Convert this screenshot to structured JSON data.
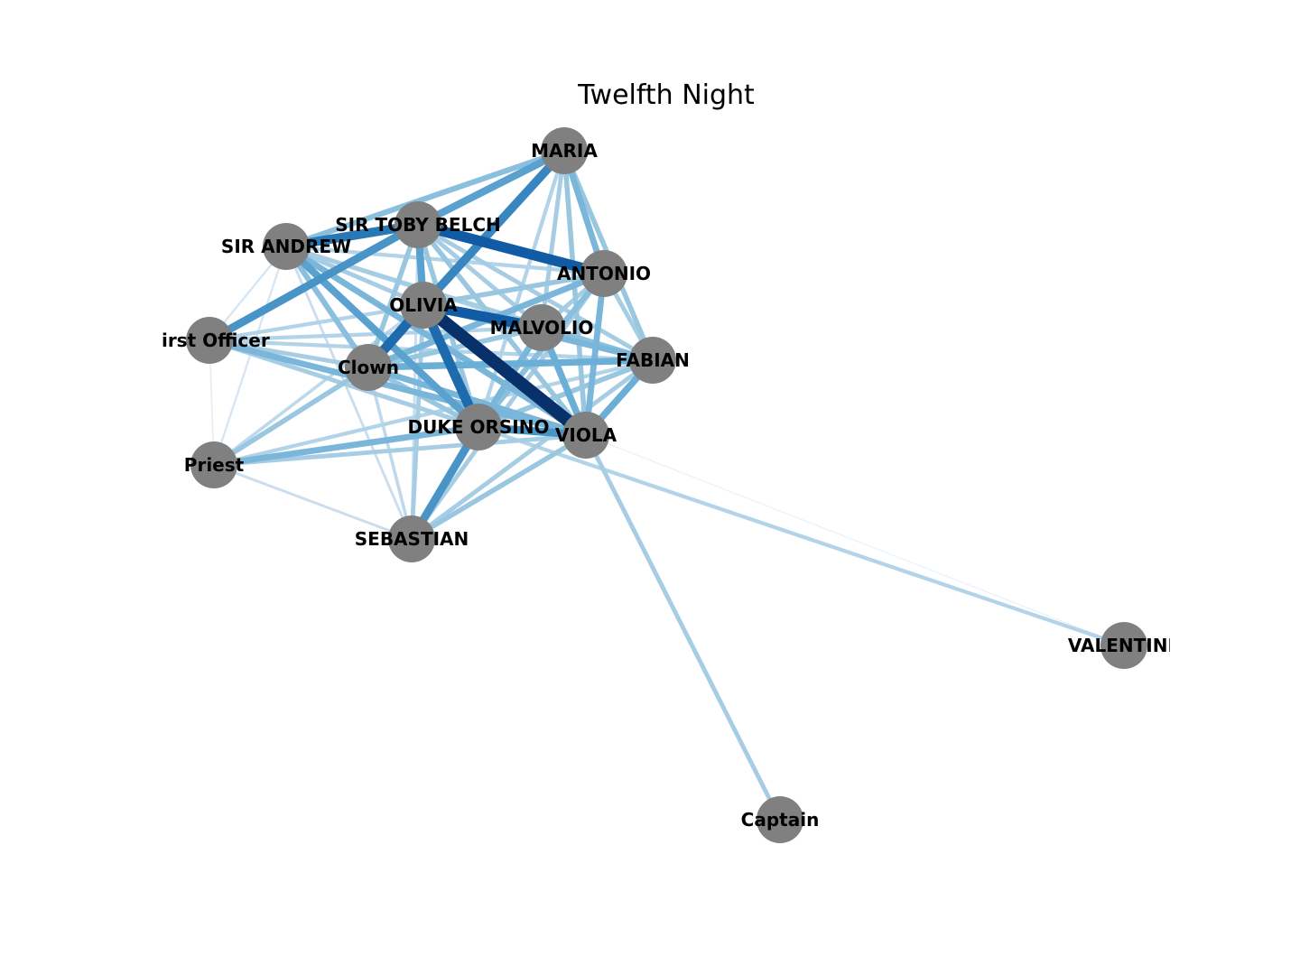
{
  "title": "Twelfth Night",
  "node_color": "#808080",
  "edge_colormap": [
    "#eef4fb",
    "#c6dbef",
    "#9ecae1",
    "#6baed6",
    "#3182bd",
    "#08519c",
    "#08306b"
  ],
  "nodes": [
    {
      "id": "MARIA",
      "label": "MARIA"
    },
    {
      "id": "SIR TOBY BELCH",
      "label": "SIR TOBY BELCH"
    },
    {
      "id": "SIR ANDREW",
      "label": "SIR ANDREW"
    },
    {
      "id": "ANTONIO",
      "label": "ANTONIO"
    },
    {
      "id": "OLIVIA",
      "label": "OLIVIA"
    },
    {
      "id": "MALVOLIO",
      "label": "MALVOLIO"
    },
    {
      "id": "First Officer",
      "label": "First Officer"
    },
    {
      "id": "Clown",
      "label": "Clown"
    },
    {
      "id": "FABIAN",
      "label": "FABIAN"
    },
    {
      "id": "DUKE ORSINO",
      "label": "DUKE ORSINO"
    },
    {
      "id": "VIOLA",
      "label": "VIOLA"
    },
    {
      "id": "Priest",
      "label": "Priest"
    },
    {
      "id": "SEBASTIAN",
      "label": "SEBASTIAN"
    },
    {
      "id": "VALENTINE",
      "label": "VALENTINE"
    },
    {
      "id": "Captain",
      "label": "Captain"
    }
  ],
  "edges": [
    {
      "source": "OLIVIA",
      "target": "VIOLA",
      "weight": 1.0
    },
    {
      "source": "SIR TOBY BELCH",
      "target": "ANTONIO",
      "weight": 0.8
    },
    {
      "source": "SIR TOBY BELCH",
      "target": "SIR ANDREW",
      "weight": 0.7
    },
    {
      "source": "OLIVIA",
      "target": "MALVOLIO",
      "weight": 0.8
    },
    {
      "source": "OLIVIA",
      "target": "DUKE ORSINO",
      "weight": 0.75
    },
    {
      "source": "OLIVIA",
      "target": "Clown",
      "weight": 0.75
    },
    {
      "source": "MARIA",
      "target": "OLIVIA",
      "weight": 0.65
    },
    {
      "source": "SIR TOBY BELCH",
      "target": "First Officer",
      "weight": 0.6
    },
    {
      "source": "DUKE ORSINO",
      "target": "SEBASTIAN",
      "weight": 0.6
    },
    {
      "source": "DUKE ORSINO",
      "target": "VIOLA",
      "weight": 0.6
    },
    {
      "source": "SIR TOBY BELCH",
      "target": "OLIVIA",
      "weight": 0.55
    },
    {
      "source": "SIR TOBY BELCH",
      "target": "MARIA",
      "weight": 0.55
    },
    {
      "source": "SIR ANDREW",
      "target": "DUKE ORSINO",
      "weight": 0.55
    },
    {
      "source": "MALVOLIO",
      "target": "VIOLA",
      "weight": 0.5
    },
    {
      "source": "FABIAN",
      "target": "VIOLA",
      "weight": 0.5
    },
    {
      "source": "Clown",
      "target": "FABIAN",
      "weight": 0.5
    },
    {
      "source": "Priest",
      "target": "DUKE ORSINO",
      "weight": 0.45
    },
    {
      "source": "MARIA",
      "target": "ANTONIO",
      "weight": 0.45
    },
    {
      "source": "ANTONIO",
      "target": "VIOLA",
      "weight": 0.45
    },
    {
      "source": "SIR ANDREW",
      "target": "VIOLA",
      "weight": 0.45
    },
    {
      "source": "SIR ANDREW",
      "target": "Clown",
      "weight": 0.4
    },
    {
      "source": "First Officer",
      "target": "VIOLA",
      "weight": 0.45
    },
    {
      "source": "OLIVIA",
      "target": "FABIAN",
      "weight": 0.45
    },
    {
      "source": "ANTONIO",
      "target": "Clown",
      "weight": 0.45
    },
    {
      "source": "MALVOLIO",
      "target": "DUKE ORSINO",
      "weight": 0.45
    },
    {
      "source": "Clown",
      "target": "VIOLA",
      "weight": 0.45
    },
    {
      "source": "MARIA",
      "target": "SIR ANDREW",
      "weight": 0.4
    },
    {
      "source": "MARIA",
      "target": "FABIAN",
      "weight": 0.35
    },
    {
      "source": "MARIA",
      "target": "VIOLA",
      "weight": 0.35
    },
    {
      "source": "SIR TOBY BELCH",
      "target": "VIOLA",
      "weight": 0.35
    },
    {
      "source": "SIR TOBY BELCH",
      "target": "Clown",
      "weight": 0.35
    },
    {
      "source": "SIR TOBY BELCH",
      "target": "DUKE ORSINO",
      "weight": 0.35
    },
    {
      "source": "SIR TOBY BELCH",
      "target": "MALVOLIO",
      "weight": 0.3
    },
    {
      "source": "SIR TOBY BELCH",
      "target": "FABIAN",
      "weight": 0.3
    },
    {
      "source": "SIR ANDREW",
      "target": "OLIVIA",
      "weight": 0.3
    },
    {
      "source": "SIR ANDREW",
      "target": "FABIAN",
      "weight": 0.3
    },
    {
      "source": "SIR ANDREW",
      "target": "ANTONIO",
      "weight": 0.25
    },
    {
      "source": "SIR ANDREW",
      "target": "MALVOLIO",
      "weight": 0.25
    },
    {
      "source": "OLIVIA",
      "target": "ANTONIO",
      "weight": 0.35
    },
    {
      "source": "OLIVIA",
      "target": "SEBASTIAN",
      "weight": 0.3
    },
    {
      "source": "OLIVIA",
      "target": "First Officer",
      "weight": 0.25
    },
    {
      "source": "OLIVIA",
      "target": "Priest",
      "weight": 0.2
    },
    {
      "source": "ANTONIO",
      "target": "MALVOLIO",
      "weight": 0.3
    },
    {
      "source": "ANTONIO",
      "target": "FABIAN",
      "weight": 0.3
    },
    {
      "source": "ANTONIO",
      "target": "DUKE ORSINO",
      "weight": 0.4
    },
    {
      "source": "ANTONIO",
      "target": "SEBASTIAN",
      "weight": 0.3
    },
    {
      "source": "MALVOLIO",
      "target": "FABIAN",
      "weight": 0.4
    },
    {
      "source": "MALVOLIO",
      "target": "Clown",
      "weight": 0.35
    },
    {
      "source": "MALVOLIO",
      "target": "First Officer",
      "weight": 0.25
    },
    {
      "source": "MALVOLIO",
      "target": "SEBASTIAN",
      "weight": 0.3
    },
    {
      "source": "MARIA",
      "target": "MALVOLIO",
      "weight": 0.3
    },
    {
      "source": "MARIA",
      "target": "DUKE ORSINO",
      "weight": 0.25
    },
    {
      "source": "First Officer",
      "target": "Clown",
      "weight": 0.3
    },
    {
      "source": "First Officer",
      "target": "DUKE ORSINO",
      "weight": 0.3
    },
    {
      "source": "First Officer",
      "target": "FABIAN",
      "weight": 0.25
    },
    {
      "source": "Clown",
      "target": "DUKE ORSINO",
      "weight": 0.35
    },
    {
      "source": "Clown",
      "target": "Priest",
      "weight": 0.35
    },
    {
      "source": "Clown",
      "target": "SEBASTIAN",
      "weight": 0.2
    },
    {
      "source": "FABIAN",
      "target": "DUKE ORSINO",
      "weight": 0.35
    },
    {
      "source": "FABIAN",
      "target": "Priest",
      "weight": 0.25
    },
    {
      "source": "FABIAN",
      "target": "SEBASTIAN",
      "weight": 0.3
    },
    {
      "source": "VIOLA",
      "target": "Priest",
      "weight": 0.3
    },
    {
      "source": "VIOLA",
      "target": "SEBASTIAN",
      "weight": 0.35
    },
    {
      "source": "VIOLA",
      "target": "Captain",
      "weight": 0.3
    },
    {
      "source": "VIOLA",
      "target": "VALENTINE",
      "weight": 0.02
    },
    {
      "source": "DUKE ORSINO",
      "target": "VALENTINE",
      "weight": 0.25
    },
    {
      "source": "Priest",
      "target": "SEBASTIAN",
      "weight": 0.15
    },
    {
      "source": "SIR ANDREW",
      "target": "SEBASTIAN",
      "weight": 0.15
    },
    {
      "source": "SIR ANDREW",
      "target": "Priest",
      "weight": 0.1
    },
    {
      "source": "First Officer",
      "target": "Priest",
      "weight": 0.05
    },
    {
      "source": "SIR TOBY BELCH",
      "target": "SEBASTIAN",
      "weight": 0.15
    },
    {
      "source": "SIR ANDREW",
      "target": "First Officer",
      "weight": 0.1
    },
    {
      "source": "MARIA",
      "target": "Clown",
      "weight": 0.25
    }
  ]
}
